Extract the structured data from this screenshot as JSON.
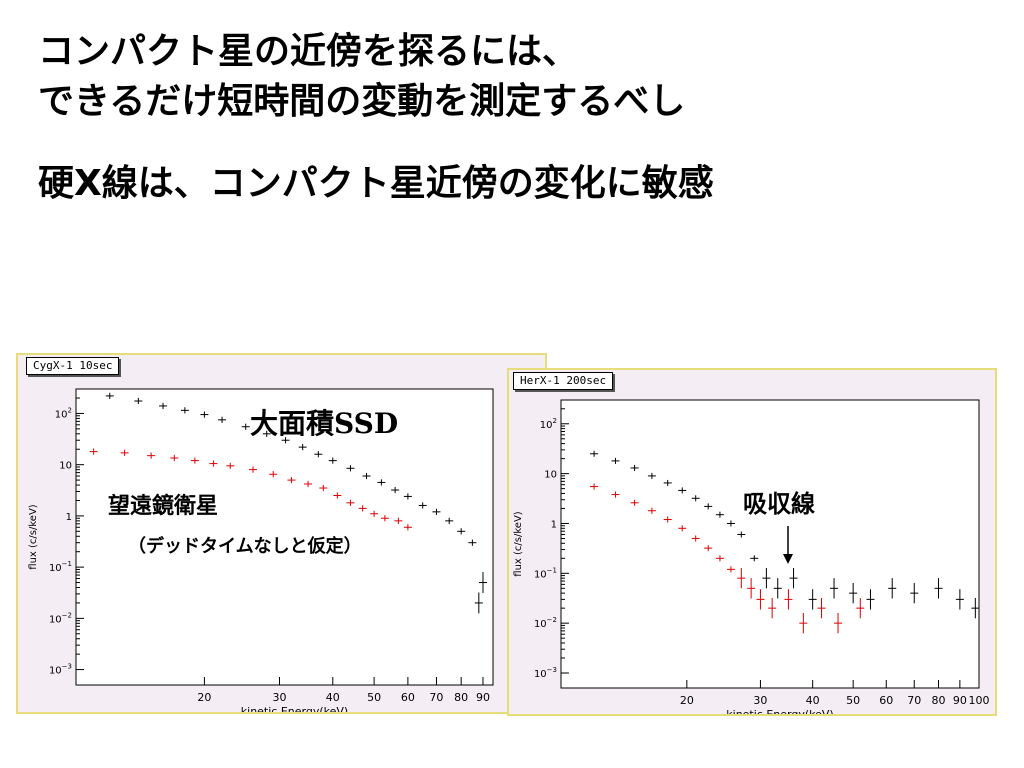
{
  "headings": {
    "line1": "コンパクト星の近傍を探るには、",
    "line2": "できるだけ短時間の変動を測定するべし",
    "line3": "硬X線は、コンパクト星近傍の変化に敏感"
  },
  "annotations": {
    "left_large_ssd": "大面積SSD",
    "left_satellite": "望遠鏡衛星",
    "left_deadtime": "（デッドタイムなしと仮定）",
    "right_absorption": "吸収線"
  },
  "colors": {
    "series_a": "#000000",
    "series_b": "#dd0000",
    "panel_bg": "#f4eef4",
    "panel_border": "#e6dc7a"
  },
  "chart_data": [
    {
      "type": "scatter",
      "title": "CygX-1 10sec",
      "xlabel": "kinetic Energy(keV)",
      "ylabel": "flux (c/s/keV)",
      "x_scale": "log",
      "y_scale": "log",
      "xlim": [
        10,
        95
      ],
      "ylim": [
        0.0005,
        300
      ],
      "x_ticks": [
        20,
        30,
        40,
        50,
        60,
        70,
        80,
        90
      ],
      "y_ticks": [
        "10^2",
        "10",
        "1",
        "10^-1",
        "10^-2",
        "10^-3"
      ],
      "y_tick_values": [
        100,
        10,
        1,
        0.1,
        0.01,
        0.001
      ],
      "series": [
        {
          "x": [
            12,
            14,
            16,
            18,
            20,
            22,
            25,
            28,
            31,
            34,
            37,
            40,
            44,
            48,
            52,
            56,
            60,
            65,
            70,
            75,
            80,
            85,
            88,
            90
          ],
          "y": [
            220,
            175,
            140,
            115,
            95,
            75,
            55,
            40,
            30,
            22,
            16,
            12,
            8.5,
            6,
            4.5,
            3.2,
            2.4,
            1.6,
            1.2,
            0.8,
            0.5,
            0.3,
            0.02,
            0.05
          ]
        },
        {
          "x": [
            11,
            13,
            15,
            17,
            19,
            21,
            23,
            26,
            29,
            32,
            35,
            38,
            41,
            44,
            47,
            50,
            53,
            57,
            60
          ],
          "y": [
            18,
            17,
            15,
            13.5,
            12,
            10.5,
            9.5,
            8,
            6.5,
            5,
            4.2,
            3.5,
            2.5,
            1.8,
            1.4,
            1.1,
            0.9,
            0.8,
            0.6
          ]
        }
      ]
    },
    {
      "type": "scatter",
      "title": "HerX-1 200sec",
      "xlabel": "kinetic Energy(keV)",
      "ylabel": "flux (c/s/keV)",
      "x_scale": "log",
      "y_scale": "log",
      "xlim": [
        10,
        100
      ],
      "ylim": [
        0.0005,
        300
      ],
      "x_ticks": [
        20,
        30,
        40,
        50,
        60,
        70,
        80,
        90,
        100
      ],
      "y_ticks": [
        "10^2",
        "10",
        "1",
        "10^-1",
        "10^-2",
        "10^-3"
      ],
      "y_tick_values": [
        100,
        10,
        1,
        0.1,
        0.01,
        0.001
      ],
      "series": [
        {
          "x": [
            12,
            13.5,
            15,
            16.5,
            18,
            19.5,
            21,
            22.5,
            24,
            25.5,
            27,
            29,
            31,
            33,
            36,
            40,
            45,
            50,
            55,
            62,
            70,
            80,
            90,
            98
          ],
          "y": [
            25,
            18,
            13,
            9,
            6.5,
            4.6,
            3.2,
            2.2,
            1.5,
            1.0,
            0.6,
            0.2,
            0.08,
            0.05,
            0.08,
            0.03,
            0.05,
            0.04,
            0.03,
            0.05,
            0.04,
            0.05,
            0.03,
            0.02
          ]
        },
        {
          "x": [
            12,
            13.5,
            15,
            16.5,
            18,
            19.5,
            21,
            22.5,
            24,
            25.5,
            27,
            28.5,
            30,
            32,
            35,
            38,
            42,
            46,
            52
          ],
          "y": [
            5.5,
            3.8,
            2.6,
            1.8,
            1.2,
            0.8,
            0.5,
            0.32,
            0.2,
            0.12,
            0.08,
            0.05,
            0.03,
            0.02,
            0.03,
            0.01,
            0.02,
            0.01,
            0.02
          ]
        }
      ]
    }
  ]
}
